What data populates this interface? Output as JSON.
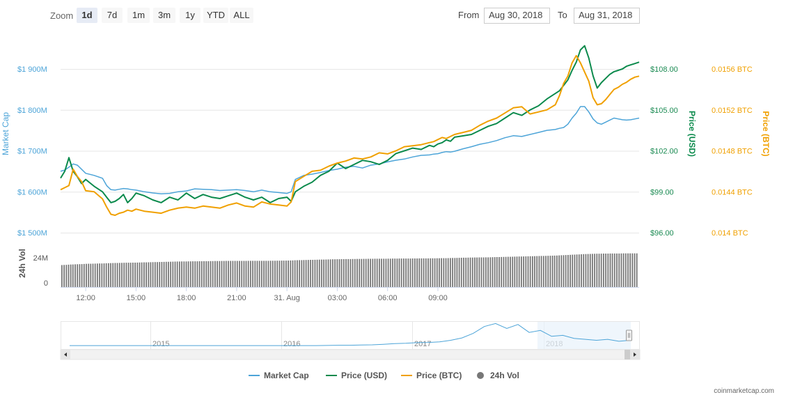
{
  "toolbar": {
    "zoom_label": "Zoom",
    "zoom_buttons": [
      "1d",
      "7d",
      "1m",
      "3m",
      "1y",
      "YTD",
      "ALL"
    ],
    "active_zoom": "1d",
    "from_label": "From",
    "from_value": "Aug 30, 2018",
    "to_label": "To",
    "to_value": "Aug 31, 2018"
  },
  "colors": {
    "market_cap": "#4ca4d8",
    "price_usd": "#0b8a4c",
    "price_btc": "#f0a000",
    "volume": "#777777"
  },
  "credit": "coinmarketcap.com",
  "chart_data": {
    "type": "line",
    "x_unit": "hours",
    "x": [
      10.5,
      10.75,
      11.0,
      11.25,
      11.5,
      11.75,
      12.0,
      12.5,
      13.0,
      13.25,
      13.5,
      13.75,
      14.0,
      14.25,
      14.5,
      14.75,
      15.0,
      15.5,
      16.0,
      16.5,
      17.0,
      17.5,
      18.0,
      18.5,
      19.0,
      19.5,
      20.0,
      20.5,
      21.0,
      21.5,
      22.0,
      22.5,
      23.0,
      23.5,
      24.0,
      24.25,
      24.5,
      25.0,
      25.5,
      26.0,
      26.5,
      27.0,
      27.5,
      28.0,
      28.5,
      29.0,
      29.5,
      30.0,
      30.5,
      31.0,
      31.5,
      32.0,
      32.5,
      32.75,
      33.0,
      33.25,
      33.5,
      33.75,
      34.0,
      34.5,
      35.0,
      35.5,
      36.0,
      36.5,
      37.0,
      37.5,
      38.0,
      38.5,
      39.0,
      39.5,
      40.0,
      40.25,
      40.5,
      40.75,
      41.0,
      41.25,
      41.5,
      41.75,
      42.0,
      42.25,
      42.5,
      42.75,
      43.0,
      43.25,
      43.5,
      43.75,
      44.0,
      44.25,
      44.5,
      44.75,
      45.0
    ],
    "series": [
      {
        "name": "Market Cap",
        "axis": "Market Cap",
        "values": [
          1650,
          1653,
          1660,
          1668,
          1665,
          1655,
          1645,
          1640,
          1633,
          1615,
          1605,
          1604,
          1606,
          1608,
          1607,
          1605,
          1604,
          1600,
          1597,
          1595,
          1596,
          1600,
          1602,
          1607,
          1606,
          1605,
          1603,
          1604,
          1605,
          1603,
          1600,
          1604,
          1600,
          1598,
          1596,
          1600,
          1630,
          1640,
          1643,
          1647,
          1652,
          1655,
          1660,
          1662,
          1658,
          1665,
          1668,
          1673,
          1677,
          1680,
          1685,
          1689,
          1690,
          1692,
          1693,
          1696,
          1698,
          1697,
          1699,
          1705,
          1710,
          1716,
          1720,
          1725,
          1732,
          1737,
          1735,
          1740,
          1745,
          1750,
          1752,
          1755,
          1757,
          1765,
          1780,
          1792,
          1808,
          1808,
          1795,
          1778,
          1768,
          1765,
          1770,
          1775,
          1780,
          1778,
          1776,
          1775,
          1776,
          1778,
          1780
        ]
      },
      {
        "name": "Price (USD)",
        "axis": "Price (USD)",
        "values": [
          100.0,
          100.5,
          101.5,
          100.5,
          100.1,
          99.6,
          99.9,
          99.4,
          99.0,
          98.6,
          98.2,
          98.3,
          98.5,
          98.8,
          98.2,
          98.5,
          98.9,
          98.7,
          98.4,
          98.2,
          98.6,
          98.4,
          98.9,
          98.5,
          98.8,
          98.6,
          98.5,
          98.7,
          98.9,
          98.6,
          98.4,
          98.6,
          98.2,
          98.5,
          98.6,
          98.3,
          99.0,
          99.4,
          99.7,
          100.2,
          100.5,
          101.1,
          100.7,
          101.0,
          101.3,
          101.2,
          101.0,
          101.3,
          101.8,
          102.0,
          102.2,
          102.1,
          102.4,
          102.3,
          102.5,
          102.6,
          102.8,
          102.7,
          103.0,
          103.1,
          103.2,
          103.5,
          103.8,
          104.0,
          104.4,
          104.8,
          104.6,
          105.0,
          105.3,
          105.8,
          106.2,
          106.4,
          106.8,
          107.2,
          107.9,
          108.5,
          109.4,
          109.7,
          108.8,
          107.5,
          106.6,
          107.0,
          107.3,
          107.6,
          107.8,
          107.9,
          108.0,
          108.2,
          108.3,
          108.4,
          108.5
        ]
      },
      {
        "name": "Price (BTC)",
        "axis": "Price (BTC)",
        "values": [
          0.01442,
          0.01444,
          0.01446,
          0.01462,
          0.01455,
          0.0145,
          0.01441,
          0.0144,
          0.01433,
          0.01425,
          0.01418,
          0.01417,
          0.01419,
          0.0142,
          0.01422,
          0.01421,
          0.01423,
          0.01421,
          0.0142,
          0.01419,
          0.01422,
          0.01424,
          0.01425,
          0.01424,
          0.01426,
          0.01425,
          0.01424,
          0.01427,
          0.01429,
          0.01426,
          0.01425,
          0.0143,
          0.01428,
          0.01427,
          0.01426,
          0.0143,
          0.0145,
          0.01455,
          0.0146,
          0.01461,
          0.01465,
          0.01468,
          0.0147,
          0.01473,
          0.01472,
          0.01474,
          0.01478,
          0.01477,
          0.0148,
          0.01484,
          0.01485,
          0.01486,
          0.01488,
          0.01489,
          0.01491,
          0.01493,
          0.01492,
          0.01494,
          0.01496,
          0.01498,
          0.015,
          0.01505,
          0.01509,
          0.01512,
          0.01517,
          0.01522,
          0.01523,
          0.01516,
          0.01518,
          0.0152,
          0.01525,
          0.01534,
          0.01546,
          0.01553,
          0.01566,
          0.01573,
          0.01566,
          0.01557,
          0.01548,
          0.01532,
          0.01525,
          0.01526,
          0.0153,
          0.01535,
          0.0154,
          0.01542,
          0.01545,
          0.01547,
          0.0155,
          0.01552,
          0.01553
        ]
      },
      {
        "name": "24h Vol",
        "axis": "24h Vol",
        "values": [
          21.0,
          21.2,
          21.5,
          21.7,
          21.8,
          22.0,
          22.2,
          22.4,
          22.6,
          22.8,
          22.9,
          23.0,
          23.1,
          23.2,
          23.3,
          23.3,
          23.4,
          23.6,
          23.8,
          24.0,
          24.2,
          24.4,
          24.5,
          24.6,
          24.7,
          24.8,
          24.9,
          25.0,
          25.0,
          25.0,
          25.1,
          25.1,
          25.1,
          25.2,
          25.3,
          25.4,
          25.6,
          25.8,
          26.0,
          26.2,
          26.4,
          26.6,
          26.7,
          26.8,
          26.9,
          27.0,
          27.1,
          27.1,
          27.2,
          27.3,
          27.3,
          27.4,
          27.4,
          27.5,
          27.5,
          27.6,
          27.6,
          27.7,
          27.8,
          28.0,
          28.2,
          28.3,
          28.4,
          28.6,
          28.8,
          29.0,
          29.2,
          29.4,
          29.6,
          29.8,
          30.0,
          30.2,
          30.4,
          30.6,
          30.8,
          31.0,
          31.2,
          31.4,
          31.6,
          31.7,
          31.8,
          31.9,
          32.0,
          32.0,
          32.1,
          32.1,
          32.1,
          32.2,
          32.2,
          32.2,
          32.2
        ]
      }
    ],
    "axes": {
      "market_cap": {
        "label": "Market Cap",
        "ticks": [
          "$1 500M",
          "$1 600M",
          "$1 700M",
          "$1 800M",
          "$1 900M"
        ],
        "range": [
          1500,
          1900
        ]
      },
      "price_usd": {
        "label": "Price (USD)",
        "ticks": [
          "$96.00",
          "$99.00",
          "$102.00",
          "$105.00",
          "$108.00"
        ],
        "range": [
          96,
          108
        ]
      },
      "price_btc": {
        "label": "Price (BTC)",
        "ticks": [
          "0.014 BTC",
          "0.0144 BTC",
          "0.0148 BTC",
          "0.0152 BTC",
          "0.0156 BTC"
        ],
        "range": [
          0.014,
          0.0156
        ]
      },
      "volume": {
        "label": "24h Vol",
        "ticks": [
          "0",
          "24M"
        ],
        "range": [
          0,
          48
        ]
      }
    },
    "x_ticks": [
      {
        "hour": 12,
        "label": "12:00"
      },
      {
        "hour": 15,
        "label": "15:00"
      },
      {
        "hour": 18,
        "label": "18:00"
      },
      {
        "hour": 21,
        "label": "21:00"
      },
      {
        "hour": 24,
        "label": "31. Aug"
      },
      {
        "hour": 27,
        "label": "03:00"
      },
      {
        "hour": 30,
        "label": "06:00"
      },
      {
        "hour": 33,
        "label": "09:00"
      }
    ],
    "navigator": {
      "year_labels": [
        "2015",
        "2016",
        "2017",
        "2018"
      ],
      "values": [
        0.3,
        0.3,
        0.3,
        0.3,
        0.3,
        0.3,
        0.3,
        0.3,
        0.3,
        0.3,
        0.3,
        0.3,
        0.3,
        0.3,
        0.3,
        0.3,
        0.3,
        0.3,
        0.3,
        0.3,
        0.3,
        0.3,
        0.3,
        0.4,
        0.5,
        0.5,
        0.6,
        0.7,
        1.0,
        1.3,
        1.5,
        1.8,
        1.9,
        2.2,
        3.0,
        4.2,
        6.5,
        10.0,
        11.5,
        9.0,
        11.0,
        7.0,
        8.0,
        5.0,
        5.5,
        4.0,
        3.5,
        3.0,
        3.5,
        2.5,
        3.0
      ]
    },
    "legend": [
      "Market Cap",
      "Price (USD)",
      "Price (BTC)",
      "24h Vol"
    ],
    "legend_position": "bottom-center",
    "grid": true
  }
}
